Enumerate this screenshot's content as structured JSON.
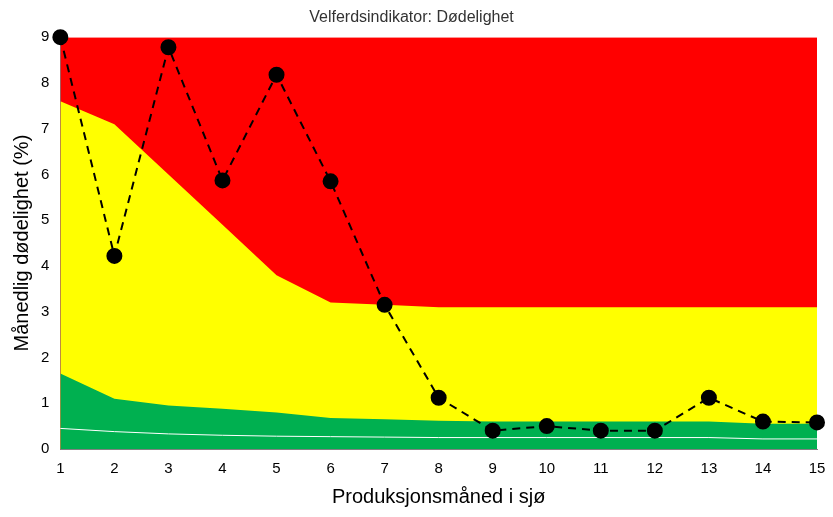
{
  "chart_data": {
    "type": "line",
    "title": "Velferdsindikator: Dødelighet",
    "x_label": "Produksjonsmåned i sjø",
    "y_label": "Månedlig dødelighet (%)",
    "categories": [
      1,
      2,
      3,
      4,
      5,
      6,
      7,
      8,
      9,
      10,
      11,
      12,
      13,
      14,
      15
    ],
    "series": [
      {
        "type": "area",
        "color": "#ff0000",
        "values": [
          9,
          9,
          9,
          9,
          9,
          9,
          9,
          9,
          9,
          9,
          9,
          9,
          9,
          9,
          9
        ]
      },
      {
        "type": "area",
        "color": "#ffff00",
        "values": [
          7.6,
          7.1,
          6.0,
          4.9,
          3.8,
          3.2,
          3.15,
          3.1,
          3.1,
          3.1,
          3.1,
          3.1,
          3.1,
          3.1,
          3.1
        ]
      },
      {
        "type": "area",
        "color": "#00b050",
        "values": [
          1.65,
          1.1,
          0.95,
          0.88,
          0.8,
          0.68,
          0.65,
          0.62,
          0.6,
          0.6,
          0.6,
          0.6,
          0.6,
          0.55,
          0.55
        ]
      },
      {
        "type": "line",
        "color": "#ffffff",
        "line_style": "solid",
        "values": [
          0.45,
          0.38,
          0.33,
          0.3,
          0.28,
          0.27,
          0.26,
          0.25,
          0.25,
          0.25,
          0.25,
          0.25,
          0.25,
          0.22,
          0.22
        ]
      },
      {
        "type": "line",
        "color": "#000000",
        "marker": "circle",
        "line_style": "dashed",
        "values": [
          9.0,
          4.22,
          8.78,
          5.87,
          8.18,
          5.85,
          3.15,
          1.12,
          0.4,
          0.5,
          0.4,
          0.4,
          1.12,
          0.6,
          0.58
        ]
      }
    ],
    "ylim": [
      0,
      9
    ],
    "yticks": [
      0,
      1,
      2,
      3,
      4,
      5,
      6,
      7,
      8,
      9
    ],
    "grid": false
  }
}
